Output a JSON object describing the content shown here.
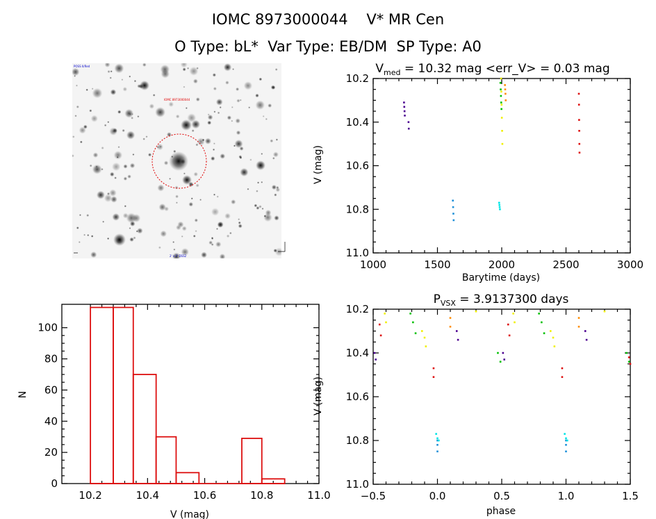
{
  "header": {
    "title": "IOMC 8973000044    V* MR Cen",
    "subtitle": "O Type: bL*  Var Type: EB/DM  SP Type: A0"
  },
  "image_panel": {
    "label_top_left": "POSS II/Red",
    "label_top_marker": "IOMC 8973000044",
    "label_bottom": "2' x 2' DSS2",
    "marker_color": "#e00000"
  },
  "chart_data": [
    {
      "type": "scatter",
      "id": "lightcurve",
      "title_parts": {
        "sym": "V",
        "sub": "med",
        "rest": " = 10.32 mag <err_V> = 0.03 mag"
      },
      "xlabel": "Barytime (days)",
      "ylabel": "V (mag)",
      "xlim": [
        1000,
        3000
      ],
      "ylim": [
        11.0,
        10.2
      ],
      "y_inverted": true,
      "xticks": [
        "1000",
        "1500",
        "2000",
        "2500",
        "3000"
      ],
      "yticks": [
        "10.2",
        "10.4",
        "10.6",
        "10.8",
        "11.0"
      ],
      "groups": [
        {
          "color": "#4b0090",
          "x": [
            1240,
            1242,
            1244,
            1246,
            1275,
            1277
          ],
          "y": [
            10.31,
            10.33,
            10.35,
            10.37,
            10.4,
            10.43
          ]
        },
        {
          "color": "#1e90d8",
          "x": [
            1620,
            1622,
            1624,
            1626
          ],
          "y": [
            10.76,
            10.79,
            10.82,
            10.85
          ]
        },
        {
          "color": "#00e5e5",
          "x": [
            1980,
            1982,
            1984,
            1986
          ],
          "y": [
            10.77,
            10.78,
            10.79,
            10.8
          ]
        },
        {
          "color": "#00c000",
          "x": [
            1990,
            1992,
            1994,
            1996,
            1998
          ],
          "y": [
            10.22,
            10.25,
            10.28,
            10.31,
            10.34
          ]
        },
        {
          "color": "#f0f000",
          "x": [
            1995,
            1997,
            1999,
            2001,
            2003,
            2005
          ],
          "y": [
            10.2,
            10.26,
            10.32,
            10.38,
            10.44,
            10.5
          ]
        },
        {
          "color": "#ff8c00",
          "x": [
            2025,
            2027,
            2029,
            2031
          ],
          "y": [
            10.23,
            10.25,
            10.27,
            10.3
          ]
        },
        {
          "color": "#dd1010",
          "x": [
            2600,
            2601,
            2602,
            2603,
            2604,
            2605
          ],
          "y": [
            10.27,
            10.32,
            10.39,
            10.44,
            10.5,
            10.54
          ]
        }
      ]
    },
    {
      "type": "bar",
      "id": "histogram",
      "xlabel": "V (mag)",
      "ylabel": "N",
      "xlim": [
        10.1,
        11.0
      ],
      "ylim": [
        0,
        115
      ],
      "xticks": [
        "10.2",
        "10.4",
        "10.6",
        "10.8",
        "11.0"
      ],
      "yticks": [
        "0",
        "20",
        "40",
        "60",
        "80",
        "100"
      ],
      "bar_color": "#dd1010",
      "bins": [
        {
          "x0": 10.2,
          "x1": 10.28,
          "n": 113
        },
        {
          "x0": 10.28,
          "x1": 10.35,
          "n": 113
        },
        {
          "x0": 10.35,
          "x1": 10.43,
          "n": 70
        },
        {
          "x0": 10.43,
          "x1": 10.5,
          "n": 30
        },
        {
          "x0": 10.5,
          "x1": 10.58,
          "n": 7
        },
        {
          "x0": 10.58,
          "x1": 10.65,
          "n": 0
        },
        {
          "x0": 10.65,
          "x1": 10.73,
          "n": 0
        },
        {
          "x0": 10.73,
          "x1": 10.8,
          "n": 29
        },
        {
          "x0": 10.8,
          "x1": 10.88,
          "n": 3
        }
      ]
    },
    {
      "type": "scatter",
      "id": "phased",
      "title_parts": {
        "sym": "P",
        "sub": "VSX",
        "rest": " = 3.9137300 days"
      },
      "xlabel": "phase",
      "ylabel": "V (mag)",
      "xlim": [
        -0.5,
        1.5
      ],
      "ylim": [
        11.0,
        10.2
      ],
      "y_inverted": true,
      "xticks": [
        "−0.5",
        "0.0",
        "0.5",
        "1.0",
        "1.5"
      ],
      "yticks": [
        "10.2",
        "10.4",
        "10.6",
        "10.8",
        "11.0"
      ],
      "groups": [
        {
          "color": "#4b0090",
          "x": [
            -0.49,
            -0.48,
            0.15,
            0.16,
            0.51,
            0.52,
            1.15,
            1.16
          ],
          "y": [
            10.4,
            10.43,
            10.3,
            10.34,
            10.4,
            10.43,
            10.3,
            10.34
          ]
        },
        {
          "color": "#1e90d8",
          "x": [
            0.0,
            0.0,
            0.0,
            1.0,
            1.0,
            1.0
          ],
          "y": [
            10.8,
            10.82,
            10.85,
            10.8,
            10.82,
            10.85
          ]
        },
        {
          "color": "#00e5e5",
          "x": [
            -0.01,
            0.0,
            0.01,
            0.99,
            1.0,
            1.01
          ],
          "y": [
            10.77,
            10.79,
            10.8,
            10.77,
            10.79,
            10.8
          ]
        },
        {
          "color": "#00c000",
          "x": [
            -0.21,
            -0.19,
            -0.17,
            0.47,
            0.49,
            0.79,
            0.81,
            0.83,
            1.47,
            1.49
          ],
          "y": [
            10.22,
            10.26,
            10.31,
            10.4,
            10.44,
            10.22,
            10.26,
            10.31,
            10.4,
            10.44
          ]
        },
        {
          "color": "#f0f000",
          "x": [
            -0.41,
            -0.4,
            -0.12,
            -0.1,
            -0.09,
            0.3,
            0.59,
            0.6,
            0.88,
            0.9,
            0.91,
            1.3
          ],
          "y": [
            10.22,
            10.26,
            10.3,
            10.33,
            10.37,
            10.21,
            10.22,
            10.26,
            10.3,
            10.33,
            10.37,
            10.21
          ]
        },
        {
          "color": "#ff8c00",
          "x": [
            0.1,
            0.1,
            1.1,
            1.1
          ],
          "y": [
            10.24,
            10.28,
            10.24,
            10.28
          ]
        },
        {
          "color": "#dd1010",
          "x": [
            -0.45,
            -0.44,
            -0.03,
            -0.03,
            0.55,
            0.56,
            0.97,
            0.97,
            1.49,
            1.5
          ],
          "y": [
            10.27,
            10.32,
            10.47,
            10.51,
            10.27,
            10.32,
            10.47,
            10.51,
            10.42,
            10.45
          ]
        }
      ]
    }
  ]
}
